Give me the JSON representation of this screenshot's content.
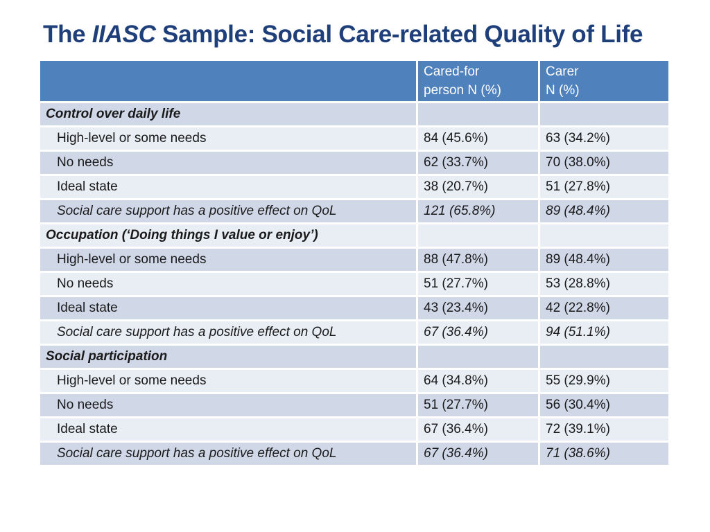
{
  "title": {
    "prefix": "The ",
    "emphasis": "IIASC",
    "suffix": " Sample: Social Care-related Quality of Life"
  },
  "table": {
    "headers": {
      "col0": "",
      "col1_line1": "Cared-for",
      "col1_line2": "person N (%)",
      "col2_line1": "Carer",
      "col2_line2": "N (%)"
    },
    "sections": [
      {
        "heading": "Control over daily life",
        "rows": [
          {
            "label": "High-level or some needs",
            "cared_for": "84 (45.6%)",
            "carer": "63 (34.2%)"
          },
          {
            "label": "No needs",
            "cared_for": "62 (33.7%)",
            "carer": "70 (38.0%)"
          },
          {
            "label": "Ideal state",
            "cared_for": "38 (20.7%)",
            "carer": "51 (27.8%)"
          },
          {
            "label": "Social care support has a positive effect on QoL",
            "cared_for": "121 (65.8%)",
            "carer": "89 (48.4%)"
          }
        ]
      },
      {
        "heading": "Occupation (‘Doing things I value or enjoy’)",
        "rows": [
          {
            "label": "High-level or some needs",
            "cared_for": "88 (47.8%)",
            "carer": "89 (48.4%)"
          },
          {
            "label": "No needs",
            "cared_for": "51 (27.7%)",
            "carer": "53 (28.8%)"
          },
          {
            "label": "Ideal state",
            "cared_for": "43 (23.4%)",
            "carer": "42 (22.8%)"
          },
          {
            "label": "Social care support has a positive effect on QoL",
            "cared_for": "67 (36.4%)",
            "carer": "94 (51.1%)"
          }
        ]
      },
      {
        "heading": "Social participation",
        "rows": [
          {
            "label": "High-level or some needs",
            "cared_for": "64 (34.8%)",
            "carer": "55 (29.9%)"
          },
          {
            "label": "No needs",
            "cared_for": "51 (27.7%)",
            "carer": "56 (30.4%)"
          },
          {
            "label": "Ideal state",
            "cared_for": "67 (36.4%)",
            "carer": "72 (39.1%)"
          },
          {
            "label": "Social care support has a positive effect on QoL",
            "cared_for": "67 (36.4%)",
            "carer": "71 (38.6%)"
          }
        ]
      }
    ]
  },
  "colors": {
    "title": "#1f3f7a",
    "header_bg": "#4f81bd",
    "band_light": "#e9edf4",
    "band_dark": "#d0d8e8"
  }
}
